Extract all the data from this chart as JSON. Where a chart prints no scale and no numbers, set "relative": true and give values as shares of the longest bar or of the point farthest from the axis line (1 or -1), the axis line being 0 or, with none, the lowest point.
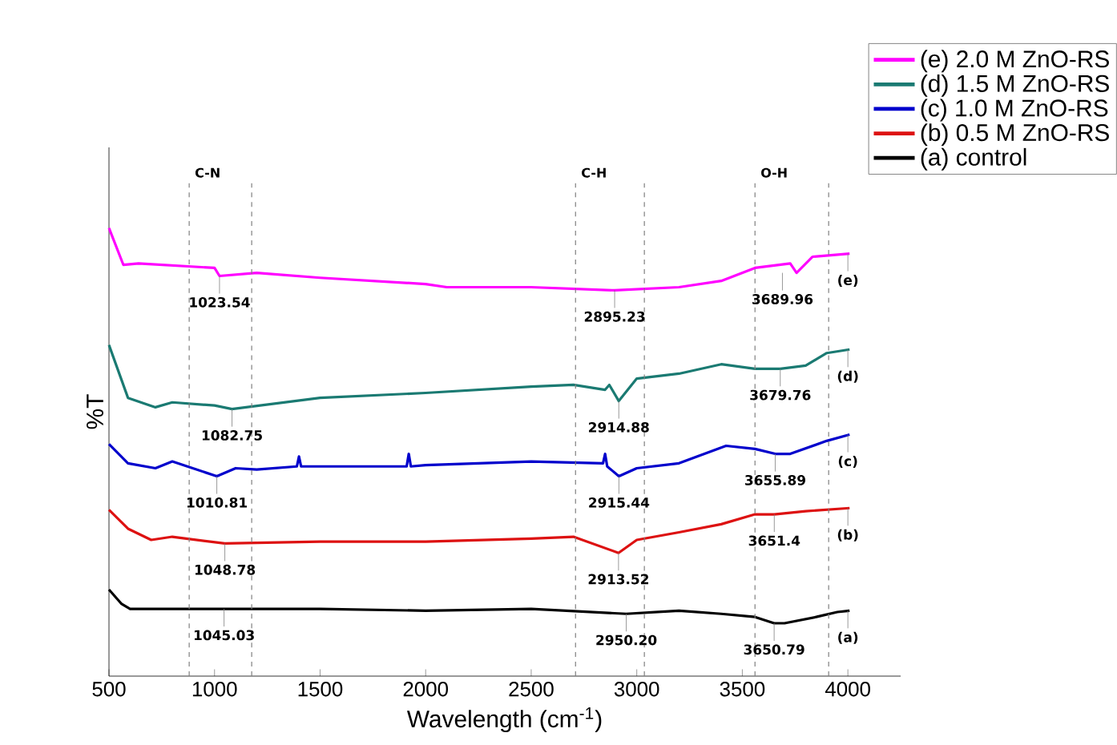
{
  "chart_data": {
    "type": "line",
    "relative": true,
    "xlabel": "Wavelength (cm$^{-1}$)",
    "ylabel": "%T",
    "x": [
      500,
      568,
      640,
      1000,
      1023.54,
      1200,
      1500,
      2000,
      2100,
      2500,
      2895.23,
      3200,
      3400,
      3560,
      3727,
      3757,
      3833,
      4008
    ],
    "xlim": [
      500,
      4250
    ],
    "xticks": [
      500,
      1000,
      1500,
      2000,
      2500,
      3000,
      3500,
      4000
    ],
    "legend": "top right",
    "series": [
      {
        "name": "(e) 2.0 M ZnO-RS",
        "color": "#ff00ff",
        "values": [
          1.0,
          0.918,
          0.921,
          0.911,
          0.893,
          0.9,
          0.889,
          0.875,
          0.868,
          0.868,
          0.861,
          0.868,
          0.882,
          0.911,
          0.921,
          0.9,
          0.936,
          0.943
        ]
      },
      {
        "name": "(d) 1.5 M ZnO-RS",
        "color": "#1a7a72",
        "x": [
          500,
          590,
          720,
          800,
          1000,
          1082.75,
          1500,
          2000,
          2500,
          2700,
          2850,
          2870,
          2914.88,
          3000,
          3200,
          3400,
          3560,
          3679.76,
          3800,
          3900,
          4008
        ],
        "values": [
          0.739,
          0.621,
          0.6,
          0.611,
          0.604,
          0.596,
          0.621,
          0.632,
          0.646,
          0.65,
          0.639,
          0.65,
          0.614,
          0.664,
          0.675,
          0.696,
          0.686,
          0.686,
          0.693,
          0.721,
          0.729
        ]
      },
      {
        "name": "(c) 1.0 M ZnO-RS",
        "color": "#0000cc",
        "x": [
          500,
          590,
          720,
          800,
          1010.81,
          1100,
          1200,
          1390,
          1400,
          1410,
          1910,
          1920,
          1930,
          2000,
          2500,
          2840,
          2850,
          2860,
          2915.44,
          3000,
          3200,
          3423,
          3560,
          3655.89,
          3727,
          3900,
          4008
        ],
        "values": [
          0.518,
          0.475,
          0.464,
          0.479,
          0.446,
          0.464,
          0.461,
          0.468,
          0.49,
          0.468,
          0.468,
          0.496,
          0.468,
          0.471,
          0.479,
          0.475,
          0.496,
          0.468,
          0.446,
          0.464,
          0.475,
          0.514,
          0.507,
          0.496,
          0.496,
          0.525,
          0.539
        ]
      },
      {
        "name": "(b) 0.5 M ZnO-RS",
        "color": "#dd1111",
        "x": [
          500,
          590,
          700,
          800,
          1048.78,
          1500,
          2000,
          2500,
          2700,
          2913.52,
          3000,
          3200,
          3400,
          3560,
          3651.4,
          3800,
          4008
        ],
        "values": [
          0.371,
          0.329,
          0.304,
          0.311,
          0.296,
          0.3,
          0.3,
          0.307,
          0.311,
          0.275,
          0.304,
          0.321,
          0.339,
          0.361,
          0.361,
          0.368,
          0.375
        ]
      },
      {
        "name": "(a) control",
        "color": "#000000",
        "x": [
          500,
          560,
          600,
          1045.03,
          1500,
          2000,
          2500,
          2950.2,
          3200,
          3400,
          3560,
          3650.79,
          3700,
          3850,
          3950,
          4008
        ],
        "values": [
          0.193,
          0.161,
          0.15,
          0.15,
          0.15,
          0.146,
          0.15,
          0.139,
          0.146,
          0.139,
          0.132,
          0.118,
          0.118,
          0.132,
          0.143,
          0.146
        ]
      }
    ],
    "ref_lines": [
      {
        "axis": "x",
        "value": 880,
        "label": "C-N",
        "color": "#808080",
        "line_style": "dashed"
      },
      {
        "axis": "x",
        "value": 1176,
        "color": "#808080",
        "line_style": "dashed"
      },
      {
        "axis": "x",
        "value": 2710,
        "label": "C-H",
        "color": "#808080",
        "line_style": "dashed"
      },
      {
        "axis": "x",
        "value": 3036,
        "color": "#808080",
        "line_style": "dashed"
      },
      {
        "axis": "x",
        "value": 3560,
        "label": "O-H",
        "color": "#808080",
        "line_style": "dashed"
      },
      {
        "axis": "x",
        "value": 3909,
        "color": "#808080",
        "line_style": "dashed"
      }
    ],
    "annotations": [
      {
        "text": "1023.54",
        "x": 1023.54,
        "y": 0.893
      },
      {
        "text": "2895.23",
        "x": 2895.23,
        "y": 0.861
      },
      {
        "text": "3689.96",
        "x": 3689.96,
        "y": 0.9
      },
      {
        "text": "1082.75",
        "x": 1082.75,
        "y": 0.596
      },
      {
        "text": "2914.88",
        "x": 2914.88,
        "y": 0.614
      },
      {
        "text": "3679.76",
        "x": 3679.76,
        "y": 0.686
      },
      {
        "text": "1010.81",
        "x": 1010.81,
        "y": 0.446
      },
      {
        "text": "2915.44",
        "x": 2915.44,
        "y": 0.446
      },
      {
        "text": "3655.89",
        "x": 3655.89,
        "y": 0.496
      },
      {
        "text": "1048.78",
        "x": 1048.78,
        "y": 0.296
      },
      {
        "text": "2913.52",
        "x": 2913.52,
        "y": 0.275
      },
      {
        "text": "3651.4",
        "x": 3651.4,
        "y": 0.361
      },
      {
        "text": "1045.03",
        "x": 1045.03,
        "y": 0.15
      },
      {
        "text": "2950.20",
        "x": 2950.2,
        "y": 0.139
      },
      {
        "text": "3650.79",
        "x": 3650.79,
        "y": 0.118
      },
      {
        "text": "(e)",
        "x": 4000,
        "y": 0.943
      },
      {
        "text": "(d)",
        "x": 4000,
        "y": 0.729
      },
      {
        "text": "(c)",
        "x": 4000,
        "y": 0.539
      },
      {
        "text": "(b)",
        "x": 4000,
        "y": 0.375
      },
      {
        "text": "(a)",
        "x": 4000,
        "y": 0.146
      }
    ]
  }
}
